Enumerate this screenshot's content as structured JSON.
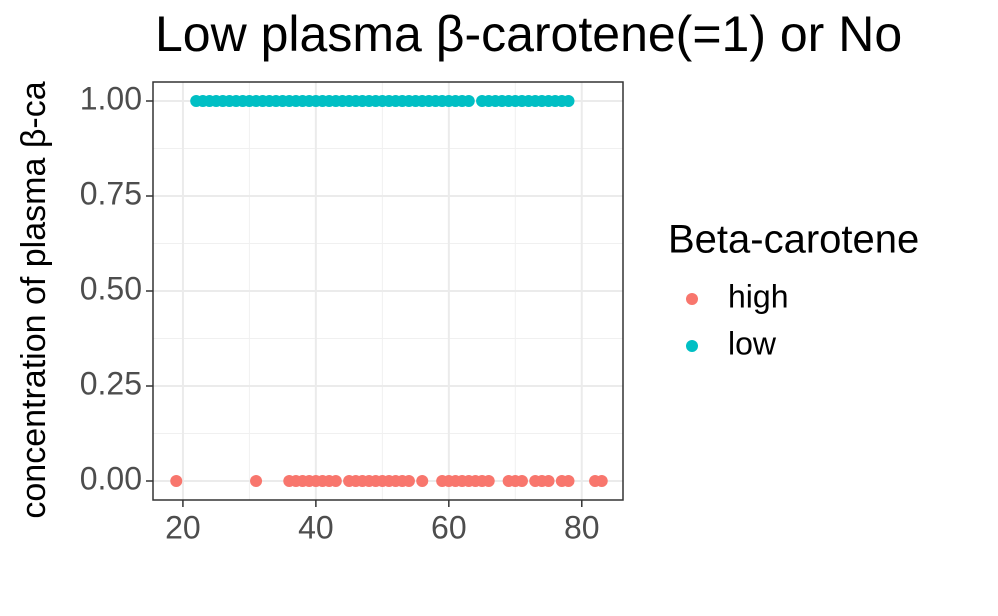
{
  "chart_data": {
    "type": "scatter",
    "title": "Low plasma β-carotene(=1) or No",
    "y_label": "concentration of plasma β-ca",
    "legend_title": "Beta-carotene",
    "xlim": [
      15.5,
      86.2
    ],
    "ylim": [
      -0.05,
      1.05
    ],
    "xticks": [
      20,
      40,
      60,
      80
    ],
    "yticks": [
      {
        "value": 0,
        "label": "0.00"
      },
      {
        "value": 0.25,
        "label": "0.25"
      },
      {
        "value": 0.5,
        "label": "0.50"
      },
      {
        "value": 0.75,
        "label": "0.75"
      },
      {
        "value": 1,
        "label": "1.00"
      }
    ],
    "grid": true,
    "series": [
      {
        "name": "high",
        "color": "#F8766D",
        "x": [
          19,
          31,
          36,
          37,
          38,
          39,
          40,
          41,
          42,
          43,
          45,
          46,
          47,
          48,
          49,
          50,
          51,
          52,
          53,
          54,
          56,
          59,
          60,
          61,
          62,
          63,
          64,
          65,
          66,
          69,
          70,
          71,
          73,
          74,
          75,
          77,
          78,
          82,
          83
        ],
        "values": [
          0,
          0,
          0,
          0,
          0,
          0,
          0,
          0,
          0,
          0,
          0,
          0,
          0,
          0,
          0,
          0,
          0,
          0,
          0,
          0,
          0,
          0,
          0,
          0,
          0,
          0,
          0,
          0,
          0,
          0,
          0,
          0,
          0,
          0,
          0,
          0,
          0,
          0,
          0
        ]
      },
      {
        "name": "low",
        "color": "#00BFC4",
        "x": [
          22,
          23,
          24,
          25,
          26,
          27,
          28,
          29,
          30,
          31,
          32,
          33,
          34,
          35,
          36,
          37,
          38,
          39,
          40,
          41,
          42,
          43,
          44,
          45,
          46,
          47,
          48,
          49,
          50,
          51,
          52,
          53,
          54,
          55,
          56,
          57,
          58,
          59,
          60,
          61,
          62,
          63,
          65,
          66,
          67,
          68,
          69,
          70,
          71,
          72,
          73,
          74,
          75,
          76,
          77,
          78
        ],
        "values": [
          1,
          1,
          1,
          1,
          1,
          1,
          1,
          1,
          1,
          1,
          1,
          1,
          1,
          1,
          1,
          1,
          1,
          1,
          1,
          1,
          1,
          1,
          1,
          1,
          1,
          1,
          1,
          1,
          1,
          1,
          1,
          1,
          1,
          1,
          1,
          1,
          1,
          1,
          1,
          1,
          1,
          1,
          1,
          1,
          1,
          1,
          1,
          1,
          1,
          1,
          1,
          1,
          1,
          1,
          1,
          1
        ]
      }
    ]
  }
}
